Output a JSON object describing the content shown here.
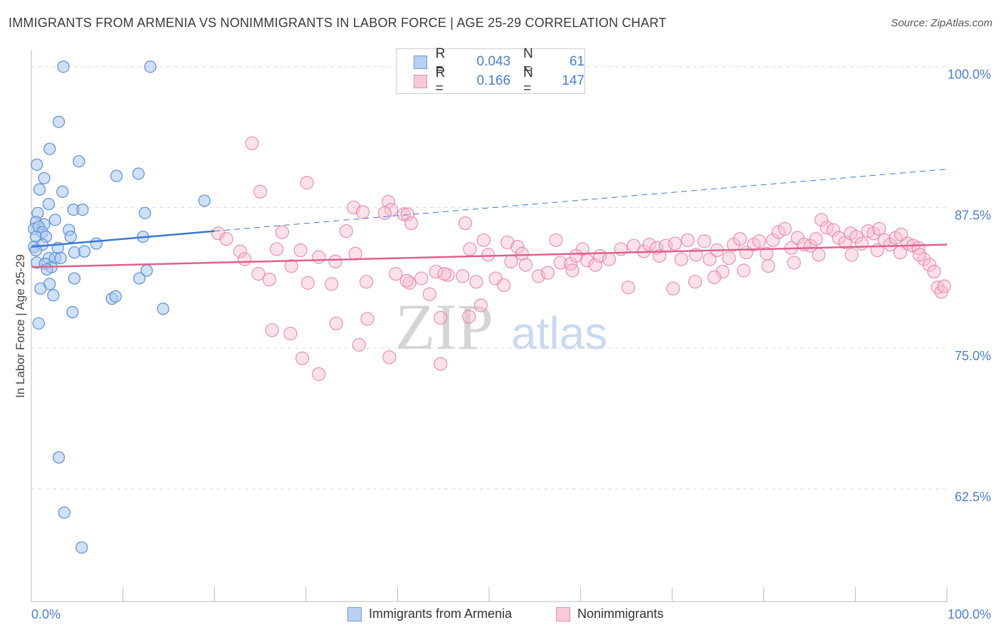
{
  "title": "IMMIGRANTS FROM ARMENIA VS NONIMMIGRANTS IN LABOR FORCE | AGE 25-29 CORRELATION CHART",
  "source": "Source: ZipAtlas.com",
  "watermark": {
    "zip": "ZIP",
    "atlas": "atlas"
  },
  "colors": {
    "blue": "#5b8fd6",
    "blue_fill": "#a9c7ef",
    "blue_line": "#3a78d0",
    "pink": "#e87fa2",
    "pink_fill": "#f6bfd0",
    "pink_line": "#e0608c",
    "tick_text": "#4a7fd4"
  },
  "legend_top": {
    "rows": [
      {
        "r_label": "R =",
        "r_value": "0.043",
        "n_label": "N =",
        "n_value": "61"
      },
      {
        "r_label": "R =",
        "r_value": "0.166",
        "n_label": "N =",
        "n_value": "147"
      }
    ]
  },
  "bottom_legend": [
    "Immigrants from Armenia",
    "Nonimmigrants"
  ],
  "chart_data": {
    "type": "scatter",
    "title": "IMMIGRANTS FROM ARMENIA VS NONIMMIGRANTS IN LABOR FORCE | AGE 25-29 CORRELATION CHART",
    "xlabel": "",
    "ylabel": "In Labor Force | Age 25-29",
    "xlim": [
      0,
      100
    ],
    "ylim": [
      52.5,
      101.5
    ],
    "x_tick_labels": [
      "0.0%",
      "100.0%"
    ],
    "y_ticks": [
      62.5,
      75.0,
      87.5,
      100.0
    ],
    "y_tick_labels": [
      "62.5%",
      "75.0%",
      "87.5%",
      "100.0%"
    ],
    "grid": true,
    "series": [
      {
        "name": "Immigrants from Armenia",
        "trend": {
          "x0": 0,
          "y0": 84.0,
          "x1": 20,
          "y1": 85.4,
          "dash_to_x": 100,
          "dash_to_y": 90.9
        },
        "points": [
          [
            3.5,
            100.0
          ],
          [
            13,
            100.0
          ],
          [
            3,
            95.1
          ],
          [
            2,
            92.7
          ],
          [
            0.6,
            91.3
          ],
          [
            5.2,
            91.6
          ],
          [
            1.4,
            90.1
          ],
          [
            9.3,
            90.3
          ],
          [
            11.7,
            90.5
          ],
          [
            0.9,
            89.1
          ],
          [
            3.4,
            88.9
          ],
          [
            1.9,
            87.8
          ],
          [
            18.9,
            88.1
          ],
          [
            0.7,
            87.0
          ],
          [
            4.6,
            87.3
          ],
          [
            5.6,
            87.3
          ],
          [
            12.4,
            87.0
          ],
          [
            0.5,
            86.2
          ],
          [
            1.4,
            86.0
          ],
          [
            2.6,
            86.4
          ],
          [
            0.3,
            85.6
          ],
          [
            0.8,
            85.8
          ],
          [
            1.2,
            85.3
          ],
          [
            4.1,
            85.5
          ],
          [
            0.5,
            84.9
          ],
          [
            1.6,
            84.9
          ],
          [
            4.3,
            84.9
          ],
          [
            12.2,
            84.9
          ],
          [
            7.1,
            84.3
          ],
          [
            0.3,
            84.0
          ],
          [
            1.2,
            84.2
          ],
          [
            2.9,
            83.9
          ],
          [
            0.5,
            83.7
          ],
          [
            4.7,
            83.5
          ],
          [
            5.8,
            83.6
          ],
          [
            1.9,
            83.0
          ],
          [
            2.6,
            83.0
          ],
          [
            3.2,
            83.0
          ],
          [
            0.6,
            82.6
          ],
          [
            1.5,
            82.5
          ],
          [
            2.2,
            82.2
          ],
          [
            1.7,
            82.0
          ],
          [
            12.6,
            81.9
          ],
          [
            4.7,
            81.2
          ],
          [
            11.8,
            81.2
          ],
          [
            2.0,
            80.7
          ],
          [
            1.0,
            80.3
          ],
          [
            2.4,
            79.7
          ],
          [
            8.8,
            79.4
          ],
          [
            9.2,
            79.6
          ],
          [
            14.4,
            78.5
          ],
          [
            4.5,
            78.2
          ],
          [
            0.8,
            77.2
          ],
          [
            3.0,
            65.3
          ],
          [
            3.6,
            60.4
          ],
          [
            5.5,
            57.3
          ]
        ]
      },
      {
        "name": "Nonimmigrants",
        "trend": {
          "x0": 0,
          "y0": 82.2,
          "x1": 100,
          "y1": 84.2
        },
        "points": [
          [
            24.1,
            93.2
          ],
          [
            25.0,
            88.9
          ],
          [
            30.1,
            89.7
          ],
          [
            35.2,
            87.5
          ],
          [
            36.2,
            87.1
          ],
          [
            39.0,
            88.0
          ],
          [
            39.3,
            87.3
          ],
          [
            38.6,
            87.0
          ],
          [
            40.7,
            86.9
          ],
          [
            41.1,
            86.9
          ],
          [
            41.5,
            86.1
          ],
          [
            47.4,
            86.1
          ],
          [
            27.4,
            85.3
          ],
          [
            34.4,
            85.4
          ],
          [
            49.4,
            84.6
          ],
          [
            52.0,
            84.4
          ],
          [
            53.1,
            84.0
          ],
          [
            57.3,
            84.6
          ],
          [
            26.8,
            83.8
          ],
          [
            29.4,
            83.7
          ],
          [
            35.4,
            83.4
          ],
          [
            47.9,
            83.8
          ],
          [
            49.9,
            83.3
          ],
          [
            52.4,
            82.7
          ],
          [
            53.6,
            83.4
          ],
          [
            54.0,
            82.4
          ],
          [
            57.8,
            82.6
          ],
          [
            58.9,
            82.5
          ],
          [
            60.2,
            83.8
          ],
          [
            55.4,
            81.4
          ],
          [
            56.4,
            81.7
          ],
          [
            59.1,
            81.9
          ],
          [
            59.5,
            83.2
          ],
          [
            60.7,
            82.8
          ],
          [
            61.6,
            82.4
          ],
          [
            62.1,
            83.2
          ],
          [
            63.1,
            82.9
          ],
          [
            64.4,
            83.8
          ],
          [
            65.8,
            84.1
          ],
          [
            66.9,
            83.6
          ],
          [
            67.5,
            84.2
          ],
          [
            68.3,
            83.9
          ],
          [
            68.6,
            83.2
          ],
          [
            69.3,
            84.1
          ],
          [
            70.3,
            84.3
          ],
          [
            71.0,
            82.9
          ],
          [
            71.7,
            84.6
          ],
          [
            72.6,
            83.3
          ],
          [
            73.5,
            84.5
          ],
          [
            74.1,
            82.9
          ],
          [
            74.9,
            83.7
          ],
          [
            75.5,
            81.8
          ],
          [
            76.2,
            83.0
          ],
          [
            76.7,
            84.2
          ],
          [
            77.4,
            84.7
          ],
          [
            78.1,
            83.5
          ],
          [
            78.9,
            84.2
          ],
          [
            79.5,
            84.5
          ],
          [
            80.3,
            83.4
          ],
          [
            81.0,
            84.6
          ],
          [
            81.6,
            85.3
          ],
          [
            82.3,
            85.6
          ],
          [
            83.0,
            83.9
          ],
          [
            83.7,
            84.8
          ],
          [
            84.4,
            84.2
          ],
          [
            85.1,
            84.1
          ],
          [
            85.7,
            84.7
          ],
          [
            86.3,
            86.4
          ],
          [
            86.9,
            85.7
          ],
          [
            87.6,
            85.5
          ],
          [
            88.2,
            84.8
          ],
          [
            88.9,
            84.4
          ],
          [
            89.5,
            85.2
          ],
          [
            90.1,
            84.9
          ],
          [
            90.7,
            84.3
          ],
          [
            91.4,
            85.4
          ],
          [
            92.0,
            85.2
          ],
          [
            92.6,
            85.6
          ],
          [
            93.2,
            84.6
          ],
          [
            93.8,
            84.2
          ],
          [
            94.4,
            84.8
          ],
          [
            95.0,
            85.1
          ],
          [
            95.7,
            84.3
          ],
          [
            96.3,
            84.1
          ],
          [
            96.9,
            83.9
          ],
          [
            97.5,
            82.9
          ],
          [
            98.1,
            82.4
          ],
          [
            98.6,
            81.8
          ],
          [
            99.0,
            80.4
          ],
          [
            99.4,
            80.0
          ],
          [
            99.7,
            80.5
          ],
          [
            20.4,
            85.2
          ],
          [
            21.3,
            84.7
          ],
          [
            22.8,
            83.6
          ],
          [
            23.3,
            82.9
          ],
          [
            24.8,
            81.6
          ],
          [
            26.0,
            81.1
          ],
          [
            28.4,
            82.3
          ],
          [
            30.2,
            80.8
          ],
          [
            31.4,
            83.1
          ],
          [
            32.8,
            80.7
          ],
          [
            33.2,
            82.7
          ],
          [
            36.6,
            80.9
          ],
          [
            39.8,
            81.6
          ],
          [
            41.3,
            80.8
          ],
          [
            42.6,
            81.2
          ],
          [
            44.2,
            81.8
          ],
          [
            45.5,
            81.5
          ],
          [
            47.1,
            81.4
          ],
          [
            48.6,
            80.9
          ],
          [
            50.7,
            81.2
          ],
          [
            51.6,
            80.6
          ],
          [
            65.2,
            80.4
          ],
          [
            70.1,
            80.3
          ],
          [
            72.5,
            80.9
          ],
          [
            74.6,
            81.3
          ],
          [
            77.8,
            81.9
          ],
          [
            80.5,
            82.3
          ],
          [
            83.3,
            82.6
          ],
          [
            86.0,
            83.3
          ],
          [
            89.6,
            83.3
          ],
          [
            92.4,
            83.7
          ],
          [
            94.9,
            83.5
          ],
          [
            97.0,
            83.3
          ],
          [
            35.8,
            75.3
          ],
          [
            39.1,
            74.2
          ],
          [
            31.4,
            72.7
          ],
          [
            29.6,
            74.1
          ],
          [
            26.3,
            76.6
          ],
          [
            28.3,
            76.3
          ],
          [
            33.3,
            77.2
          ],
          [
            36.7,
            77.6
          ],
          [
            44.7,
            77.7
          ],
          [
            44.7,
            73.6
          ],
          [
            47.8,
            77.8
          ],
          [
            49.1,
            78.8
          ],
          [
            43.5,
            79.8
          ],
          [
            45.1,
            81.6
          ],
          [
            41.0,
            81.0
          ]
        ]
      }
    ]
  }
}
